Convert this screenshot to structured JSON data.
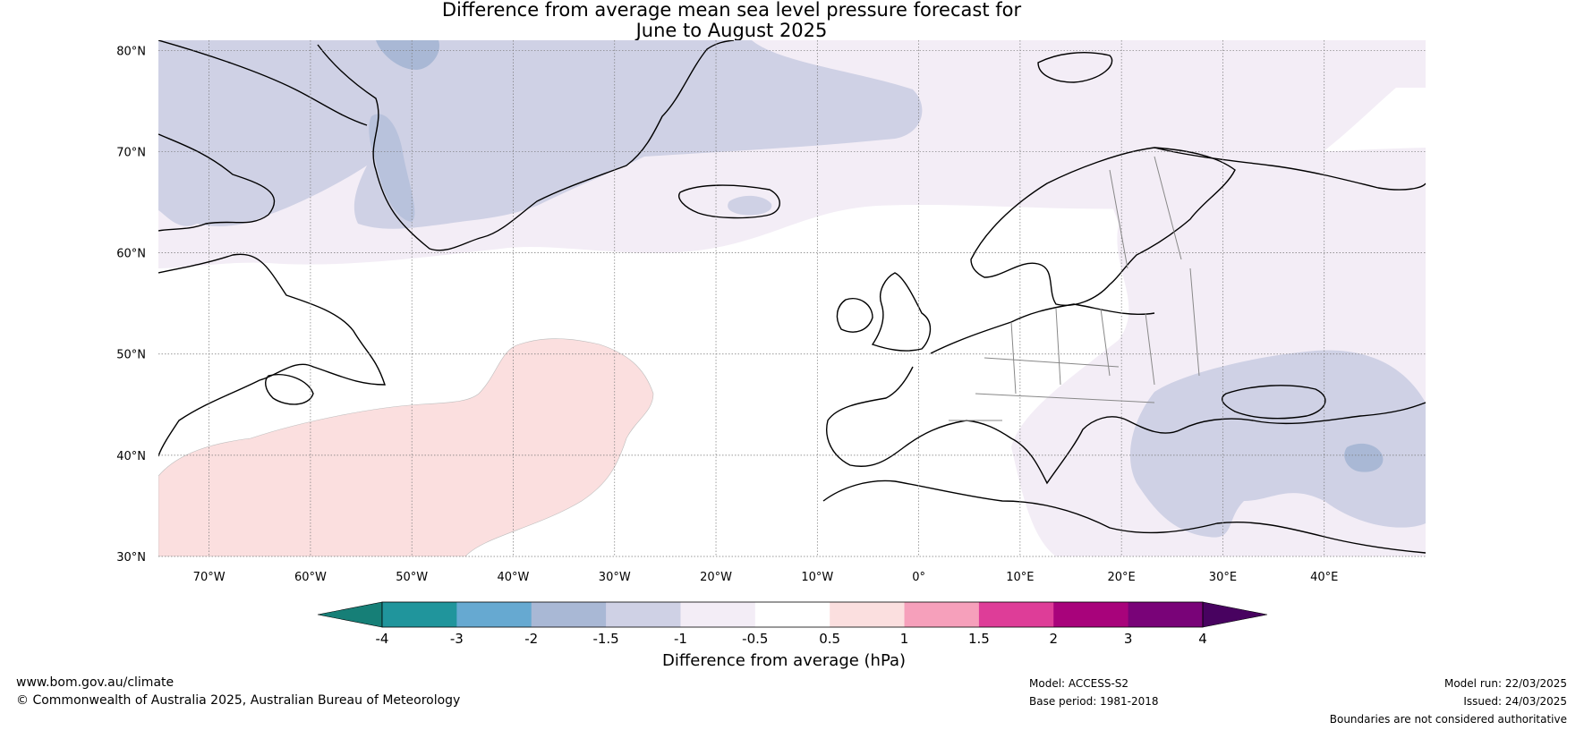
{
  "title": {
    "line1": "Difference from average mean sea level pressure forecast for",
    "line2": "June to August 2025"
  },
  "map": {
    "lat_labels": [
      "80°N",
      "70°N",
      "60°N",
      "50°N",
      "40°N",
      "30°N"
    ],
    "lon_labels": [
      "70°W",
      "60°W",
      "50°W",
      "40°W",
      "30°W",
      "20°W",
      "10°W",
      "0°",
      "10°E",
      "20°E",
      "30°E",
      "40°E"
    ],
    "extent": {
      "lon": [
        -75,
        50
      ],
      "lat": [
        30,
        81
      ]
    },
    "colors": {
      "light_blue": "#cfd1e5",
      "blue": "#a9b8d5",
      "pale_purple": "#f3edf6",
      "pale_pink": "#fbdfdf"
    }
  },
  "colorbar": {
    "ticks": [
      "-4",
      "-3",
      "-2",
      "-1.5",
      "-1",
      "-0.5",
      "0.5",
      "1",
      "1.5",
      "2",
      "3",
      "4"
    ],
    "colors": [
      "#167f77",
      "#20959c",
      "#66a9d1",
      "#a9b8d5",
      "#cfd1e5",
      "#f3edf6",
      "#ffffff",
      "#fbdfdf",
      "#f6a0bb",
      "#de3d98",
      "#a8037b",
      "#790378",
      "#480260"
    ],
    "label": "Difference from average (hPa)"
  },
  "footer": {
    "website": "www.bom.gov.au/climate",
    "copyright": "© Commonwealth of Australia 2025, Australian Bureau of Meteorology",
    "model": "Model: ACCESS-S2",
    "base_period": "Base period: 1981-2018",
    "model_run": "Model run: 22/03/2025",
    "issued": "Issued: 24/03/2025",
    "disclaimer": "Boundaries are not considered authoritative"
  }
}
